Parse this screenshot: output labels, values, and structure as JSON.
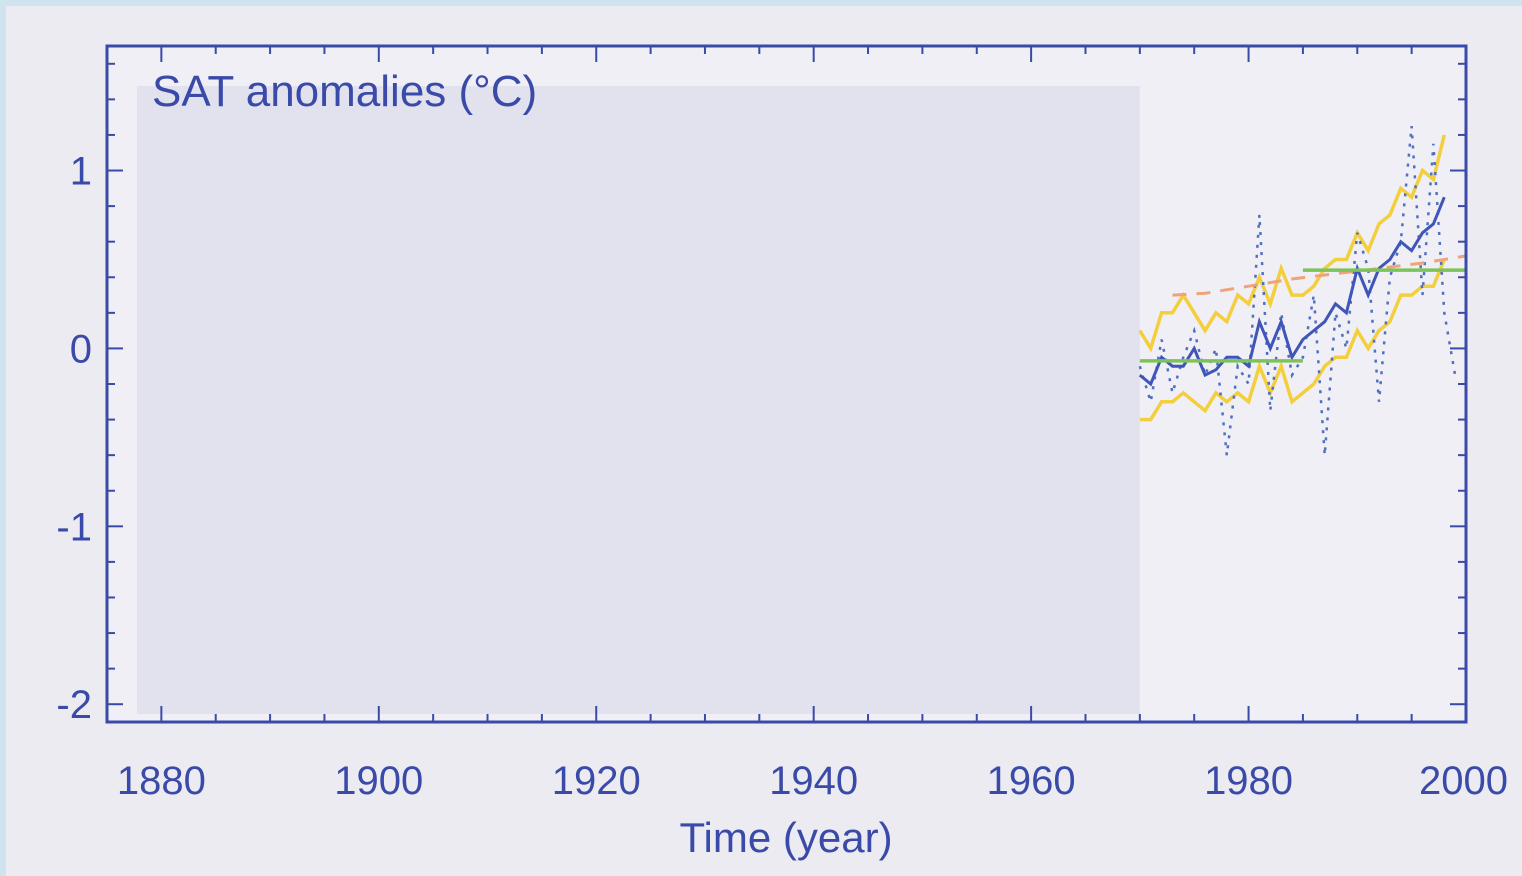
{
  "chart_data": {
    "type": "line",
    "title": "SAT anomalies (°C)",
    "xlabel": "Time (year)",
    "ylabel": "",
    "xlim": [
      1875,
      2000
    ],
    "ylim": [
      -2.1,
      1.7
    ],
    "x_ticks": [
      1880,
      1900,
      1920,
      1940,
      1960,
      1980,
      2000
    ],
    "y_ticks": [
      1,
      0,
      -1,
      -2
    ],
    "x_tick_labels": [
      "1880",
      "1900",
      "1920",
      "1940",
      "1960",
      "1980",
      "2000"
    ],
    "y_tick_labels": [
      "1",
      "0",
      "-1",
      "-2"
    ],
    "grid": false,
    "colors": {
      "axis": "#3a4aa8",
      "plot_shade": "#e2e2ef",
      "blue": "#3f56b8",
      "yellow": "#f3cf3e",
      "orange": "#f0a27a",
      "green": "#7cc35a",
      "dotted": "#4f6fc0"
    },
    "series": [
      {
        "style": "dotted",
        "x": [
          1970,
          1971,
          1972,
          1973,
          1974,
          1975,
          1976,
          1977,
          1978,
          1979,
          1980,
          1981,
          1982,
          1983,
          1984,
          1985,
          1986,
          1987,
          1988,
          1989,
          1990,
          1991,
          1992,
          1993,
          1994,
          1995,
          1996,
          1997,
          1998,
          1999
        ],
        "values": [
          -0.1,
          -0.3,
          0.05,
          -0.25,
          -0.05,
          0.1,
          -0.15,
          0.0,
          -0.6,
          -0.1,
          -0.2,
          0.75,
          -0.35,
          0.2,
          -0.15,
          -0.05,
          0.3,
          -0.6,
          0.2,
          0.0,
          0.65,
          0.45,
          -0.3,
          0.4,
          0.6,
          1.25,
          0.3,
          1.15,
          0.2,
          -0.15
        ]
      },
      {
        "style": "solid-blue",
        "x": [
          1970,
          1971,
          1972,
          1973,
          1974,
          1975,
          1976,
          1977,
          1978,
          1979,
          1980,
          1981,
          1982,
          1983,
          1984,
          1985,
          1986,
          1987,
          1988,
          1989,
          1990,
          1991,
          1992,
          1993,
          1994,
          1995,
          1996,
          1997,
          1998
        ],
        "values": [
          -0.15,
          -0.2,
          -0.05,
          -0.1,
          -0.1,
          0.0,
          -0.15,
          -0.12,
          -0.05,
          -0.05,
          -0.1,
          0.15,
          0.0,
          0.15,
          -0.05,
          0.05,
          0.1,
          0.15,
          0.25,
          0.2,
          0.45,
          0.3,
          0.45,
          0.5,
          0.6,
          0.55,
          0.65,
          0.7,
          0.85
        ]
      },
      {
        "style": "solid-yellow-upper",
        "x": [
          1970,
          1971,
          1972,
          1973,
          1974,
          1975,
          1976,
          1977,
          1978,
          1979,
          1980,
          1981,
          1982,
          1983,
          1984,
          1985,
          1986,
          1987,
          1988,
          1989,
          1990,
          1991,
          1992,
          1993,
          1994,
          1995,
          1996,
          1997,
          1998
        ],
        "values": [
          0.1,
          0.0,
          0.2,
          0.2,
          0.3,
          0.2,
          0.1,
          0.2,
          0.15,
          0.3,
          0.25,
          0.4,
          0.25,
          0.45,
          0.3,
          0.3,
          0.35,
          0.45,
          0.5,
          0.5,
          0.65,
          0.55,
          0.7,
          0.75,
          0.9,
          0.85,
          1.0,
          0.95,
          1.2
        ]
      },
      {
        "style": "solid-yellow-lower",
        "x": [
          1970,
          1971,
          1972,
          1973,
          1974,
          1975,
          1976,
          1977,
          1978,
          1979,
          1980,
          1981,
          1982,
          1983,
          1984,
          1985,
          1986,
          1987,
          1988,
          1989,
          1990,
          1991,
          1992,
          1993,
          1994,
          1995,
          1996,
          1997,
          1998
        ],
        "values": [
          -0.4,
          -0.4,
          -0.3,
          -0.3,
          -0.25,
          -0.3,
          -0.35,
          -0.25,
          -0.3,
          -0.25,
          -0.3,
          -0.1,
          -0.25,
          -0.1,
          -0.3,
          -0.25,
          -0.2,
          -0.1,
          -0.05,
          -0.05,
          0.1,
          0.0,
          0.1,
          0.15,
          0.3,
          0.3,
          0.35,
          0.35,
          0.5
        ]
      },
      {
        "style": "dashed-orange",
        "x": [
          1973,
          1976,
          1980,
          1984,
          1988,
          1992,
          1996,
          2000
        ],
        "values": [
          0.3,
          0.31,
          0.35,
          0.39,
          0.42,
          0.45,
          0.48,
          0.52
        ]
      },
      {
        "style": "green-step",
        "segments": [
          {
            "x": [
              1970,
              1985
            ],
            "values": [
              -0.07,
              -0.07
            ]
          },
          {
            "x": [
              1985,
              2000
            ],
            "values": [
              0.44,
              0.44
            ]
          }
        ]
      }
    ]
  }
}
